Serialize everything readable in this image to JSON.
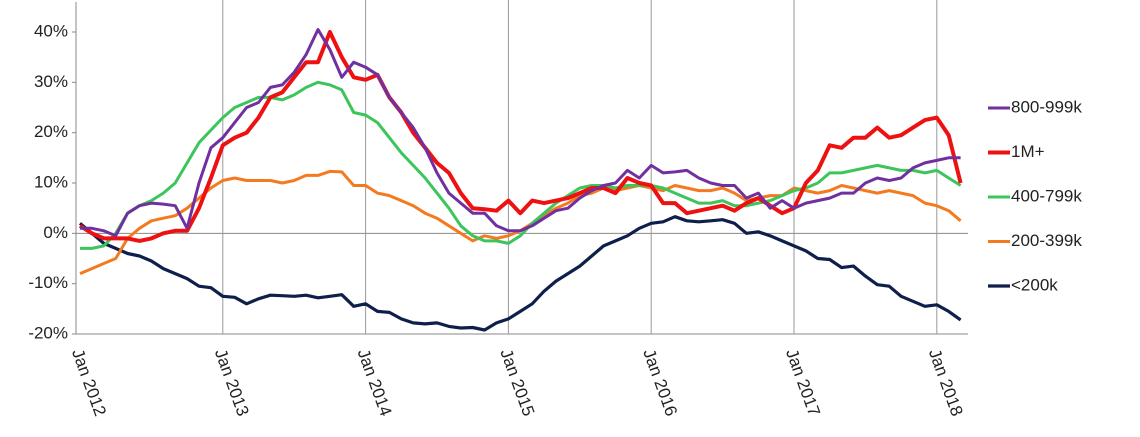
{
  "chart_data": {
    "type": "line",
    "categories": [
      "Jan 2012",
      null,
      null,
      null,
      null,
      null,
      null,
      null,
      null,
      null,
      null,
      null,
      "Jan 2013",
      null,
      null,
      null,
      null,
      null,
      null,
      null,
      null,
      null,
      null,
      null,
      "Jan 2014",
      null,
      null,
      null,
      null,
      null,
      null,
      null,
      null,
      null,
      null,
      null,
      "Jan 2015",
      null,
      null,
      null,
      null,
      null,
      null,
      null,
      null,
      null,
      null,
      null,
      "Jan 2016",
      null,
      null,
      null,
      null,
      null,
      null,
      null,
      null,
      null,
      null,
      null,
      "Jan 2017",
      null,
      null,
      null,
      null,
      null,
      null,
      null,
      null,
      null,
      null,
      null,
      "Jan 2018",
      null,
      null
    ],
    "series": [
      {
        "name": "800-999k",
        "color": "#7030a0",
        "values": [
          1,
          1,
          0.5,
          -0.5,
          4,
          5.5,
          6,
          5.8,
          5.5,
          1,
          10,
          17,
          19,
          22,
          25,
          26,
          29,
          29.5,
          32,
          35.5,
          40.5,
          36.5,
          31,
          34,
          33,
          31.5,
          27,
          24,
          21,
          17,
          12,
          8,
          6,
          4,
          4,
          1.5,
          0.5,
          0.5,
          1.5,
          3,
          4.5,
          5,
          7,
          8.5,
          9.5,
          10,
          12.5,
          11,
          13.5,
          12,
          12.2,
          12.5,
          11,
          10,
          9.5,
          9.5,
          7,
          8,
          5,
          6.5,
          5,
          6,
          6.5,
          7,
          8,
          8,
          10,
          11,
          10.5,
          11,
          13,
          14,
          14.5,
          15,
          15
        ]
      },
      {
        "name": "1M+",
        "color": "#ee1111",
        "values": [
          1.5,
          0,
          -1,
          -1,
          -1,
          -1.5,
          -1,
          0,
          0.5,
          0.5,
          5,
          11,
          17.5,
          19,
          20,
          23,
          27,
          28,
          31,
          34,
          34,
          40,
          35,
          31,
          30.5,
          31.5,
          27,
          24,
          20,
          17,
          14,
          12,
          8,
          5,
          4.8,
          4.5,
          6.5,
          4,
          6.5,
          6,
          6.5,
          7,
          8,
          9,
          9,
          8,
          11,
          10,
          9.5,
          6,
          6,
          4,
          4.5,
          5,
          5.5,
          4.5,
          6,
          7,
          5.5,
          4,
          5,
          10,
          12.5,
          17.5,
          17,
          19,
          19,
          21,
          19,
          19.5,
          21,
          22.5,
          23,
          19.5,
          10
        ]
      },
      {
        "name": "400-799k",
        "color": "#3cc55a",
        "values": [
          -3,
          -3,
          -2.5,
          0,
          4,
          5.5,
          6.5,
          8,
          10,
          14,
          18,
          20.5,
          23,
          25,
          26,
          27,
          27,
          26.5,
          27.5,
          29,
          30,
          29.5,
          28.5,
          24,
          23.5,
          22,
          19,
          16,
          13.5,
          11,
          8,
          5,
          1.5,
          -0.5,
          -1.5,
          -1.5,
          -2,
          -0.5,
          2,
          4,
          6,
          7.5,
          9,
          9.5,
          9.5,
          9,
          9.5,
          9.5,
          9.5,
          9,
          8,
          7,
          6,
          6,
          6.5,
          5.5,
          5.5,
          6,
          6.5,
          7.5,
          8.5,
          9,
          10,
          12,
          12,
          12.5,
          13,
          13.5,
          13,
          12.5,
          12.5,
          12,
          12.5,
          11,
          9.5
        ]
      },
      {
        "name": "200-399k",
        "color": "#f47a1f",
        "values": [
          -8,
          -7,
          -6,
          -5,
          -1,
          1,
          2.5,
          3,
          3.5,
          5,
          7,
          9,
          10.5,
          11,
          10.5,
          10.5,
          10.5,
          10,
          10.5,
          11.5,
          11.5,
          12.3,
          12.2,
          9.5,
          9.5,
          8,
          7.5,
          6.5,
          5.5,
          4,
          3,
          1.5,
          0,
          -1.5,
          -0.5,
          -1,
          -0.5,
          0.5,
          2,
          3.5,
          5,
          6,
          7.5,
          8,
          9,
          8.5,
          9,
          9.5,
          9,
          8.5,
          9.5,
          9,
          8.5,
          8.5,
          9,
          8,
          6.5,
          7,
          7.5,
          7.5,
          9,
          8.5,
          8,
          8.5,
          9.5,
          9,
          8.5,
          8,
          8.5,
          8,
          7.5,
          6,
          5.5,
          4.5,
          2.5
        ]
      },
      {
        "name": "<200k",
        "color": "#0d1f4a",
        "values": [
          2,
          0,
          -2,
          -3,
          -4,
          -4.5,
          -5.5,
          -7,
          -8,
          -9,
          -10.5,
          -10.8,
          -12.5,
          -12.7,
          -14,
          -13,
          -12.3,
          -12.4,
          -12.5,
          -12.3,
          -12.8,
          -12.5,
          -12.2,
          -14.5,
          -14,
          -15.5,
          -15.7,
          -17,
          -17.8,
          -18,
          -17.8,
          -18.5,
          -18.8,
          -18.7,
          -19.2,
          -17.8,
          -17,
          -15.5,
          -14,
          -11.5,
          -9.5,
          -8,
          -6.5,
          -4.5,
          -2.5,
          -1.5,
          -0.5,
          1,
          2,
          2.3,
          3.3,
          2.5,
          2.3,
          2.5,
          2.7,
          2,
          0,
          0.3,
          -0.5,
          -1.5,
          -2.5,
          -3.5,
          -5,
          -5.2,
          -6.8,
          -6.5,
          -8.5,
          -10.2,
          -10.5,
          -12.5,
          -13.5,
          -14.5,
          -14.2,
          -15.5,
          -17.2
        ]
      }
    ],
    "ylim": [
      -20,
      40
    ],
    "yticks": [
      {
        "value": -20,
        "label": "-20%"
      },
      {
        "value": -10,
        "label": "-10%"
      },
      {
        "value": 0,
        "label": "0%"
      },
      {
        "value": 10,
        "label": "10%"
      },
      {
        "value": 20,
        "label": "20%"
      },
      {
        "value": 30,
        "label": "30%"
      },
      {
        "value": 40,
        "label": "40%"
      }
    ],
    "legend": "right"
  }
}
